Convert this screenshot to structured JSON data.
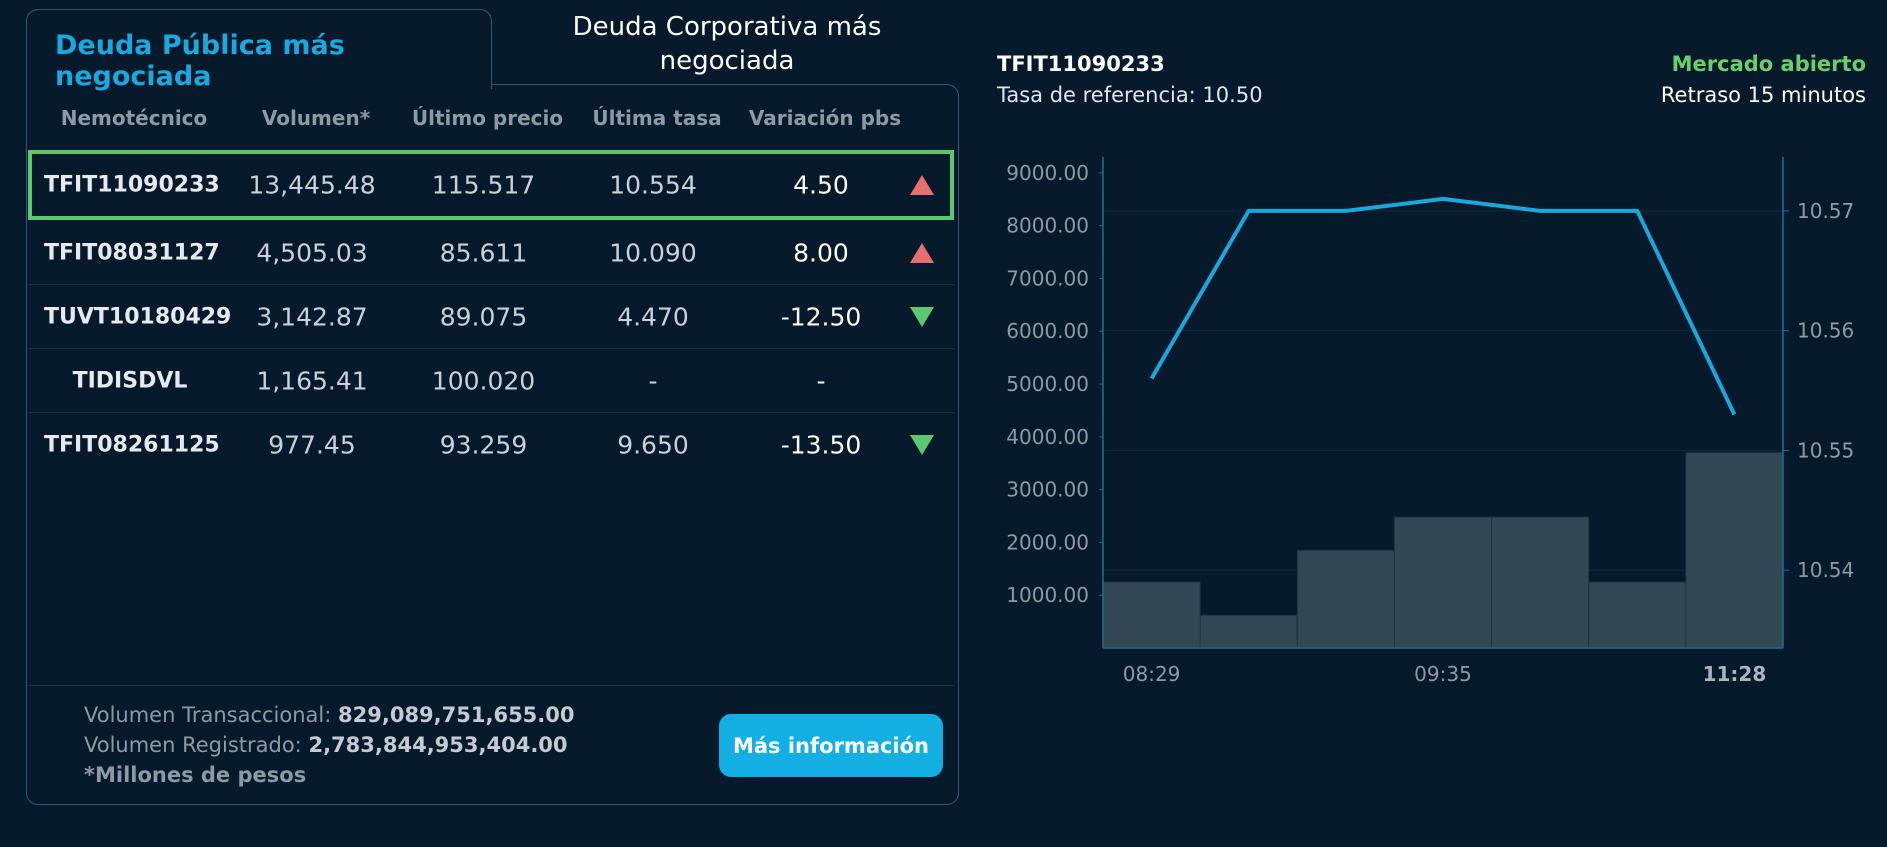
{
  "tabs": {
    "active": "Deuda Pública más negociada",
    "inactive_line1": "Deuda Corporativa más",
    "inactive_line2": "negociada"
  },
  "table": {
    "headers": [
      "Nemotécnico",
      "Volumen*",
      "Último precio",
      "Última tasa",
      "Variación pbs"
    ],
    "rows": [
      {
        "nemo": "TFIT11090233",
        "volumen": "13,445.48",
        "precio": "115.517",
        "tasa": "10.554",
        "variacion": "4.50",
        "trend": "up"
      },
      {
        "nemo": "TFIT08031127",
        "volumen": "4,505.03",
        "precio": "85.611",
        "tasa": "10.090",
        "variacion": "8.00",
        "trend": "up"
      },
      {
        "nemo": "TUVT10180429",
        "volumen": "3,142.87",
        "precio": "89.075",
        "tasa": "4.470",
        "variacion": "-12.50",
        "trend": "down"
      },
      {
        "nemo": "TIDISDVL",
        "volumen": "1,165.41",
        "precio": "100.020",
        "tasa": "-",
        "variacion": "-",
        "trend": "none"
      },
      {
        "nemo": "TFIT08261125",
        "volumen": "977.45",
        "precio": "93.259",
        "tasa": "9.650",
        "variacion": "-13.50",
        "trend": "down"
      }
    ]
  },
  "footer": {
    "vol_trans_label": "Volumen Transaccional:",
    "vol_trans_value": "829,089,751,655.00",
    "vol_reg_label": "Volumen Registrado:",
    "vol_reg_value": "2,783,844,953,404.00",
    "note": "*Millones de pesos",
    "button": "Más información"
  },
  "detail": {
    "title": "TFIT11090233",
    "reference": "Tasa de referencia: 10.50",
    "market_status": "Mercado abierto",
    "delay": "Retraso 15 minutos"
  },
  "colors": {
    "background": "#061a2b",
    "accent": "#19a8e0",
    "up": "#e86f6f",
    "down": "#5ec86e",
    "line": "#1aa7dc",
    "bar": "#344754",
    "status_open": "#69cf6b"
  },
  "chart_data": {
    "type": "bar+line",
    "x_ticks": [
      "08:29",
      "09:35",
      "11:28"
    ],
    "bars": {
      "values": [
        1250,
        620,
        1850,
        2480,
        2480,
        1250,
        3700
      ],
      "axis": "left"
    },
    "line": {
      "values": [
        10.556,
        10.57,
        10.57,
        10.571,
        10.57,
        10.57,
        10.553
      ],
      "axis": "right"
    },
    "y_left_ticks": [
      "1000.00",
      "2000.00",
      "3000.00",
      "4000.00",
      "5000.00",
      "6000.00",
      "7000.00",
      "8000.00",
      "9000.00"
    ],
    "y_left_range": [
      0,
      9300
    ],
    "y_right_ticks": [
      "10.54",
      "10.55",
      "10.56",
      "10.57"
    ],
    "y_right_range": [
      10.5335,
      10.5745
    ]
  }
}
